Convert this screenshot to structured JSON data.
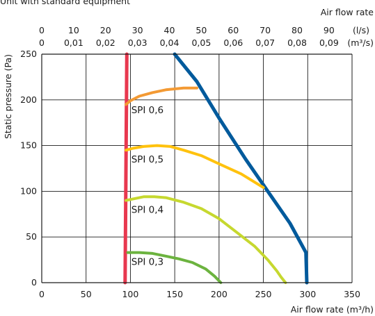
{
  "header_note": "Unit with standard equipment",
  "chart_data": {
    "type": "line",
    "xlabel": "Air flow rate (m³/h)",
    "ylabel": "Static pressure (Pa)",
    "xlim": [
      0,
      350
    ],
    "ylim": [
      0,
      250
    ],
    "x_ticks": [
      "0",
      "50",
      "100",
      "150",
      "200",
      "250",
      "300",
      "350"
    ],
    "y_ticks": [
      "0",
      "50",
      "100",
      "150",
      "200",
      "250"
    ],
    "grid": true,
    "top_axis": {
      "label": "Air flow rate",
      "ls_unit": "(l/s)",
      "m3s_unit": "(m³/s)",
      "ls_ticks": [
        {
          "x": 0,
          "label": "0"
        },
        {
          "x": 36,
          "label": "10"
        },
        {
          "x": 72,
          "label": "20"
        },
        {
          "x": 108,
          "label": "30"
        },
        {
          "x": 144,
          "label": "40"
        },
        {
          "x": 180,
          "label": "50"
        },
        {
          "x": 216,
          "label": "60"
        },
        {
          "x": 252,
          "label": "70"
        },
        {
          "x": 288,
          "label": "80"
        },
        {
          "x": 324,
          "label": "90"
        }
      ],
      "m3s_ticks": [
        {
          "x": 0,
          "label": "0"
        },
        {
          "x": 36,
          "label": "0,01"
        },
        {
          "x": 72,
          "label": "0,02"
        },
        {
          "x": 108,
          "label": "0,03"
        },
        {
          "x": 144,
          "label": "0,04"
        },
        {
          "x": 180,
          "label": "0,05"
        },
        {
          "x": 216,
          "label": "0,06"
        },
        {
          "x": 252,
          "label": "0,07"
        },
        {
          "x": 288,
          "label": "0,08"
        },
        {
          "x": 324,
          "label": "0,09"
        }
      ]
    },
    "series": [
      {
        "name": "",
        "color": "#e8384f",
        "points": [
          [
            94,
            0
          ],
          [
            96,
            250
          ]
        ]
      },
      {
        "name": "",
        "color": "#005a9c",
        "points": [
          [
            150,
            250
          ],
          [
            175,
            220
          ],
          [
            200,
            180
          ],
          [
            230,
            135
          ],
          [
            255,
            100
          ],
          [
            280,
            65
          ],
          [
            298,
            33
          ],
          [
            299,
            0
          ]
        ]
      },
      {
        "name": "SPI 0,6",
        "color": "#f39a34",
        "points": [
          [
            95,
            195
          ],
          [
            100,
            199
          ],
          [
            110,
            204
          ],
          [
            125,
            208
          ],
          [
            140,
            211
          ],
          [
            160,
            213
          ],
          [
            175,
            213
          ]
        ]
      },
      {
        "name": "SPI 0,5",
        "color": "#ffc20e",
        "points": [
          [
            95,
            145
          ],
          [
            103,
            147
          ],
          [
            115,
            149
          ],
          [
            130,
            150
          ],
          [
            145,
            149
          ],
          [
            160,
            145
          ],
          [
            180,
            139
          ],
          [
            200,
            130
          ],
          [
            225,
            119
          ],
          [
            250,
            104
          ]
        ]
      },
      {
        "name": "SPI 0,4",
        "color": "#c6d82f",
        "points": [
          [
            95,
            90
          ],
          [
            105,
            92
          ],
          [
            115,
            94
          ],
          [
            127,
            94
          ],
          [
            140,
            93
          ],
          [
            160,
            88
          ],
          [
            180,
            81
          ],
          [
            200,
            70
          ],
          [
            220,
            55
          ],
          [
            240,
            40
          ],
          [
            255,
            25
          ],
          [
            265,
            13
          ],
          [
            270,
            6
          ],
          [
            275,
            0
          ]
        ]
      },
      {
        "name": "SPI 0,3",
        "color": "#6cb33f",
        "points": [
          [
            97,
            33
          ],
          [
            110,
            33
          ],
          [
            125,
            32
          ],
          [
            140,
            29
          ],
          [
            155,
            26
          ],
          [
            170,
            22
          ],
          [
            185,
            15
          ],
          [
            195,
            7
          ],
          [
            202,
            0
          ]
        ]
      }
    ]
  }
}
